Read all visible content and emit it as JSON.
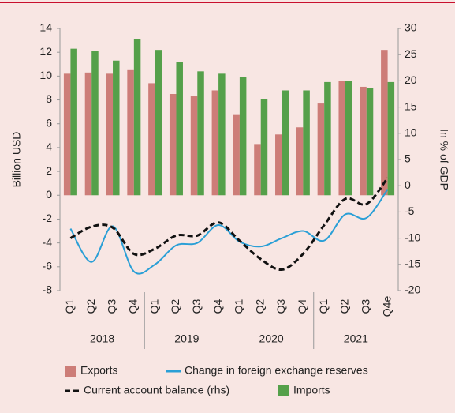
{
  "chart_data": {
    "type": "bar",
    "categories": [
      "Q1",
      "Q2",
      "Q3",
      "Q4",
      "Q1",
      "Q2",
      "Q3",
      "Q4",
      "Q1",
      "Q2",
      "Q3",
      "Q4",
      "Q1",
      "Q2",
      "Q3",
      "Q4e"
    ],
    "years": [
      "2018",
      "2019",
      "2020",
      "2021"
    ],
    "series": [
      {
        "name": "Exports",
        "type": "bar",
        "color": "#cd7d78",
        "values": [
          10.2,
          10.3,
          10.2,
          10.5,
          9.4,
          8.5,
          8.3,
          8.8,
          6.8,
          4.3,
          5.1,
          5.7,
          7.7,
          9.6,
          9.1,
          12.2
        ]
      },
      {
        "name": "Imports",
        "type": "bar",
        "color": "#55a04a",
        "values": [
          12.3,
          12.1,
          11.3,
          13.1,
          12.2,
          11.2,
          10.4,
          10.2,
          9.9,
          8.1,
          8.8,
          8.8,
          9.5,
          9.6,
          9.0,
          9.5
        ]
      },
      {
        "name": "Change in foreign exchange reserves",
        "type": "line",
        "color": "#2a9fd6",
        "values": [
          -2.8,
          -5.6,
          -2.6,
          -6.4,
          -5.8,
          -4.2,
          -4.0,
          -2.5,
          -3.9,
          -4.3,
          -3.6,
          -3.0,
          -3.8,
          -1.6,
          -1.9,
          0.5
        ]
      },
      {
        "name": "Current account balance (rhs)",
        "type": "line",
        "dash": true,
        "axis": "y2",
        "color": "#111111",
        "values": [
          -10,
          -7.8,
          -8.0,
          -13,
          -12,
          -9.5,
          -9.5,
          -7,
          -10.5,
          -14,
          -16,
          -13,
          -7.5,
          -2.5,
          -3.5,
          1.5
        ]
      }
    ],
    "ylabel": "Billion USD",
    "y2label": "In % of GDP",
    "ylim": [
      -8,
      14
    ],
    "yticks": [
      -8,
      -6,
      -4,
      -2,
      0,
      2,
      4,
      6,
      8,
      10,
      12,
      14
    ],
    "y2lim": [
      -20,
      30
    ],
    "y2ticks": [
      -20,
      -15,
      -10,
      -5,
      0,
      5,
      10,
      15,
      20,
      25,
      30
    ]
  }
}
